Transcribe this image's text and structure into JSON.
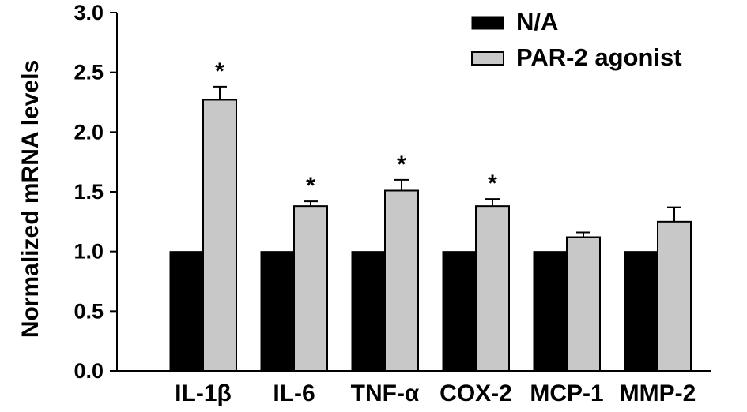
{
  "chart_data": {
    "type": "bar",
    "title": "",
    "xlabel": "",
    "ylabel": "Normalized mRNA  levels",
    "ylim": [
      0,
      3.0
    ],
    "yticks": [
      "0.0",
      "0.5",
      "1.0",
      "1.5",
      "2.0",
      "2.5",
      "3.0"
    ],
    "ytick_values": [
      0,
      0.5,
      1.0,
      1.5,
      2.0,
      2.5,
      3.0
    ],
    "categories": [
      "IL-1β",
      "IL-6",
      "TNF-α",
      "COX-2",
      "MCP-1",
      "MMP-2"
    ],
    "series": [
      {
        "name": "N/A",
        "color": "#000000",
        "values": [
          1.0,
          1.0,
          1.0,
          1.0,
          1.0,
          1.0
        ],
        "errors": [
          0,
          0,
          0,
          0,
          0,
          0
        ]
      },
      {
        "name": "PAR-2 agonist",
        "color": "#c8c8c8",
        "values": [
          2.27,
          1.38,
          1.51,
          1.38,
          1.12,
          1.25
        ],
        "errors": [
          0.11,
          0.04,
          0.09,
          0.06,
          0.04,
          0.12
        ]
      }
    ],
    "significance": [
      "*",
      "*",
      "*",
      "*",
      "",
      ""
    ],
    "legend_position": "top-right",
    "grid": false
  }
}
